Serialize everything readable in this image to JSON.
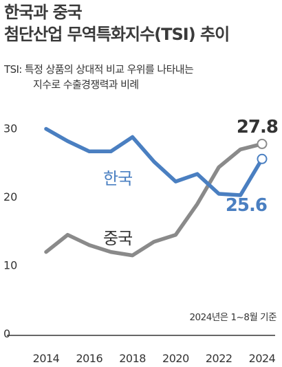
{
  "header": {
    "title_line1": "한국과 중국",
    "title_line2": "첨단산업 무역특화지수(TSI) 추이"
  },
  "note": {
    "line1": "TSI: 특정 상품의 상대적 비교 우위를 나타내는",
    "line2": "지수로 수출경쟁력과 비례"
  },
  "footnote": "2024년은 1~8월 기준",
  "chart_data": {
    "type": "line",
    "x": [
      2014,
      2015,
      2016,
      2017,
      2018,
      2019,
      2020,
      2021,
      2022,
      2023,
      2024
    ],
    "xticks": [
      "2014",
      "2016",
      "2018",
      "2020",
      "2022",
      "2024"
    ],
    "yticks": [
      "0",
      "10",
      "20",
      "30"
    ],
    "ylim": [
      0,
      31
    ],
    "grid": false,
    "series": [
      {
        "name": "한국",
        "color": "#4a7fc1",
        "values": [
          30.0,
          28.2,
          26.7,
          26.7,
          28.8,
          25.2,
          22.3,
          23.4,
          20.5,
          20.3,
          25.6
        ],
        "end_label": "25.6"
      },
      {
        "name": "중국",
        "color": "#8a8a8a",
        "values": [
          12.0,
          14.5,
          13.0,
          12.0,
          11.5,
          13.5,
          14.5,
          19.0,
          24.4,
          27.0,
          27.8
        ],
        "end_label": "27.8"
      }
    ]
  }
}
